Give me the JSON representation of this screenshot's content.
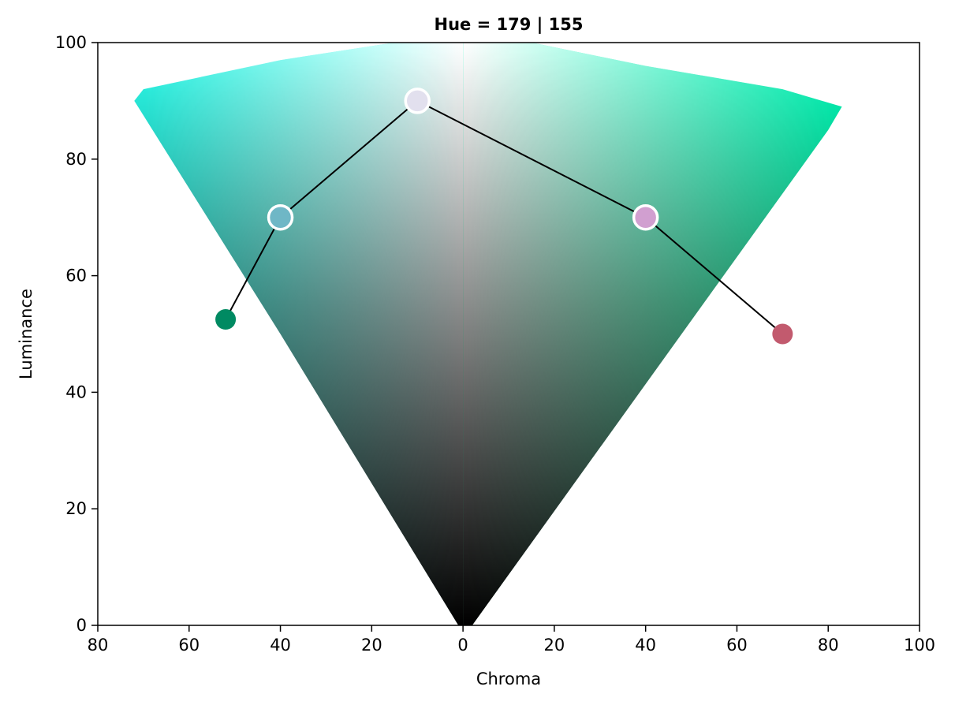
{
  "chart_data": {
    "type": "scatter",
    "title": "Hue = 179 | 155",
    "xlabel": "Chroma",
    "ylabel": "Luminance",
    "xlim": [
      -80,
      100
    ],
    "ylim": [
      0,
      100
    ],
    "x_ticks": [
      {
        "value": -80,
        "label": "80"
      },
      {
        "value": -60,
        "label": "60"
      },
      {
        "value": -40,
        "label": "40"
      },
      {
        "value": -20,
        "label": "20"
      },
      {
        "value": 0,
        "label": "0"
      },
      {
        "value": 20,
        "label": "20"
      },
      {
        "value": 40,
        "label": "40"
      },
      {
        "value": 60,
        "label": "60"
      },
      {
        "value": 80,
        "label": "80"
      },
      {
        "value": 100,
        "label": "100"
      }
    ],
    "y_ticks": [
      {
        "value": 0,
        "label": "0"
      },
      {
        "value": 20,
        "label": "20"
      },
      {
        "value": 40,
        "label": "40"
      },
      {
        "value": 60,
        "label": "60"
      },
      {
        "value": 80,
        "label": "80"
      },
      {
        "value": 100,
        "label": "100"
      }
    ],
    "grid": false,
    "gamut_left_hue": 179,
    "gamut_right_hue": 155,
    "gamut_boundary_left": [
      [
        -1,
        0
      ],
      [
        -40,
        50
      ],
      [
        -72,
        90
      ],
      [
        -70,
        92
      ],
      [
        -40,
        97
      ],
      [
        -15,
        100
      ],
      [
        0,
        100
      ]
    ],
    "gamut_boundary_right": [
      [
        0,
        100
      ],
      [
        15,
        100
      ],
      [
        40,
        96
      ],
      [
        70,
        92
      ],
      [
        83,
        89
      ],
      [
        80,
        85
      ],
      [
        2,
        0
      ]
    ],
    "gamut_colors": {
      "left_top": "#2effee",
      "left_mid": "#0f8a7e",
      "left_bottom": "#001a16",
      "right_top": "#00ffbf",
      "right_mid": "#00935d",
      "right_bottom": "#001c10",
      "center_top": "#ffffff",
      "center_bottom": "#000000"
    },
    "path_series": [
      {
        "x": -52,
        "y": 52.5,
        "color": "#008a62",
        "outlined": false
      },
      {
        "x": -40,
        "y": 70,
        "color": "#6fb7c6",
        "outlined": true
      },
      {
        "x": -10,
        "y": 90,
        "color": "#e2e0ee",
        "outlined": true
      },
      {
        "x": 40,
        "y": 70,
        "color": "#d19fd0",
        "outlined": true
      },
      {
        "x": 70,
        "y": 50,
        "color": "#c25a6e",
        "outlined": false
      }
    ]
  }
}
